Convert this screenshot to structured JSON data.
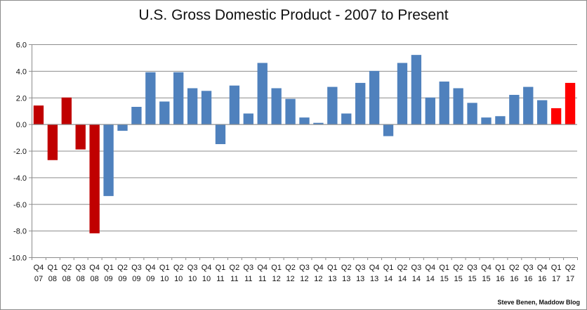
{
  "chart_data": {
    "type": "bar",
    "title": "U.S. Gross Domestic Product - 2007 to Present",
    "xlabel": "",
    "ylabel": "",
    "ylim": [
      -10,
      6
    ],
    "yticks": [
      6,
      4,
      2,
      0,
      -2,
      -4,
      -6,
      -8,
      -10
    ],
    "ytick_labels": [
      "6.0",
      "4.0",
      "2.0",
      "0.0",
      "-2.0",
      "-4.0",
      "-6.0",
      "-8.0",
      "-10.0"
    ],
    "grid": true,
    "categories": [
      [
        "Q4",
        "07"
      ],
      [
        "Q1",
        "08"
      ],
      [
        "Q2",
        "08"
      ],
      [
        "Q3",
        "08"
      ],
      [
        "Q4",
        "08"
      ],
      [
        "Q1",
        "09"
      ],
      [
        "Q2",
        "09"
      ],
      [
        "Q3",
        "09"
      ],
      [
        "Q4",
        "09"
      ],
      [
        "Q1",
        "10"
      ],
      [
        "Q2",
        "10"
      ],
      [
        "Q3",
        "10"
      ],
      [
        "Q4",
        "10"
      ],
      [
        "Q1",
        "11"
      ],
      [
        "Q2",
        "11"
      ],
      [
        "Q3",
        "11"
      ],
      [
        "Q4",
        "11"
      ],
      [
        "Q1",
        "12"
      ],
      [
        "Q2",
        "12"
      ],
      [
        "Q3",
        "12"
      ],
      [
        "Q4",
        "12"
      ],
      [
        "Q1",
        "13"
      ],
      [
        "Q2",
        "13"
      ],
      [
        "Q3",
        "13"
      ],
      [
        "Q4",
        "13"
      ],
      [
        "Q1",
        "14"
      ],
      [
        "Q2",
        "14"
      ],
      [
        "Q3",
        "14"
      ],
      [
        "Q4",
        "14"
      ],
      [
        "Q1",
        "15"
      ],
      [
        "Q2",
        "15"
      ],
      [
        "Q3",
        "15"
      ],
      [
        "Q4",
        "15"
      ],
      [
        "Q1",
        "16"
      ],
      [
        "Q2",
        "16"
      ],
      [
        "Q3",
        "16"
      ],
      [
        "Q4",
        "16"
      ],
      [
        "Q1",
        "17"
      ],
      [
        "Q2",
        "17"
      ]
    ],
    "values": [
      1.4,
      -2.7,
      2.0,
      -1.9,
      -8.2,
      -5.4,
      -0.5,
      1.3,
      3.9,
      1.7,
      3.9,
      2.7,
      2.5,
      -1.5,
      2.9,
      0.8,
      4.6,
      2.7,
      1.9,
      0.5,
      0.1,
      2.8,
      0.8,
      3.1,
      4.0,
      -0.9,
      4.6,
      5.2,
      2.0,
      3.2,
      2.7,
      1.6,
      0.5,
      0.6,
      2.2,
      2.8,
      1.8,
      1.2,
      3.1
    ],
    "groups": [
      "dark-red",
      "dark-red",
      "dark-red",
      "dark-red",
      "dark-red",
      "blue",
      "blue",
      "blue",
      "blue",
      "blue",
      "blue",
      "blue",
      "blue",
      "blue",
      "blue",
      "blue",
      "blue",
      "blue",
      "blue",
      "blue",
      "blue",
      "blue",
      "blue",
      "blue",
      "blue",
      "blue",
      "blue",
      "blue",
      "blue",
      "blue",
      "blue",
      "blue",
      "blue",
      "blue",
      "blue",
      "blue",
      "blue",
      "red",
      "red"
    ],
    "colors": {
      "dark-red": "#c00000",
      "blue": "#4f81bd",
      "red": "#ff0000"
    },
    "gridline_color": "#8c8c8c",
    "axis_color": "#8c8c8c"
  },
  "credit": "Steve Benen, Maddow Blog"
}
